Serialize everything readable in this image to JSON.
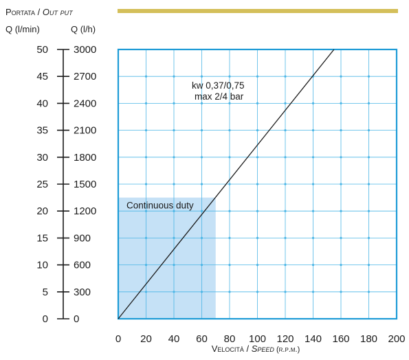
{
  "header": {
    "title_it": "Portata",
    "title_sep": " / ",
    "title_en": "Out put",
    "left_unit": "Q (l/min)",
    "right_unit": "Q (l/h)"
  },
  "footer": {
    "xlabel_it": "Velocità",
    "xlabel_sep": " / ",
    "xlabel_en": "Speed",
    "xlabel_unit": " (r.p.m.)"
  },
  "colors": {
    "frame": "#1d9bd6",
    "grid": "#4cb6e6",
    "shade": "#c5e1f6",
    "accent_bar": "#d4bf5a",
    "line": "#1a1a1a"
  },
  "chart_data": {
    "type": "line",
    "xlim": [
      0,
      200
    ],
    "ylim": [
      0,
      50
    ],
    "y2lim": [
      0,
      3000
    ],
    "xticks": [
      "0",
      "20",
      "40",
      "60",
      "80",
      "100",
      "120",
      "140",
      "160",
      "180",
      "200"
    ],
    "yticks": [
      "0",
      "5",
      "10",
      "15",
      "20",
      "25",
      "30",
      "35",
      "40",
      "45",
      "50"
    ],
    "y2ticks": [
      "0",
      "300",
      "600",
      "900",
      "1200",
      "1500",
      "1800",
      "2100",
      "2400",
      "2700",
      "3000"
    ],
    "grid": true,
    "series": [
      {
        "name": "kw 0,37/0,75 max 2/4 bar",
        "x": [
          0,
          155
        ],
        "y": [
          0,
          50
        ]
      }
    ],
    "annotations": [
      {
        "text_line1": "kw 0,37/0,75",
        "text_line2": "max 2/4 bar",
        "x": 105,
        "y": 44
      }
    ],
    "regions": [
      {
        "label": "Continuous duty",
        "x0": 0,
        "x1": 70,
        "y0": 0,
        "y1": 22.5
      }
    ]
  }
}
